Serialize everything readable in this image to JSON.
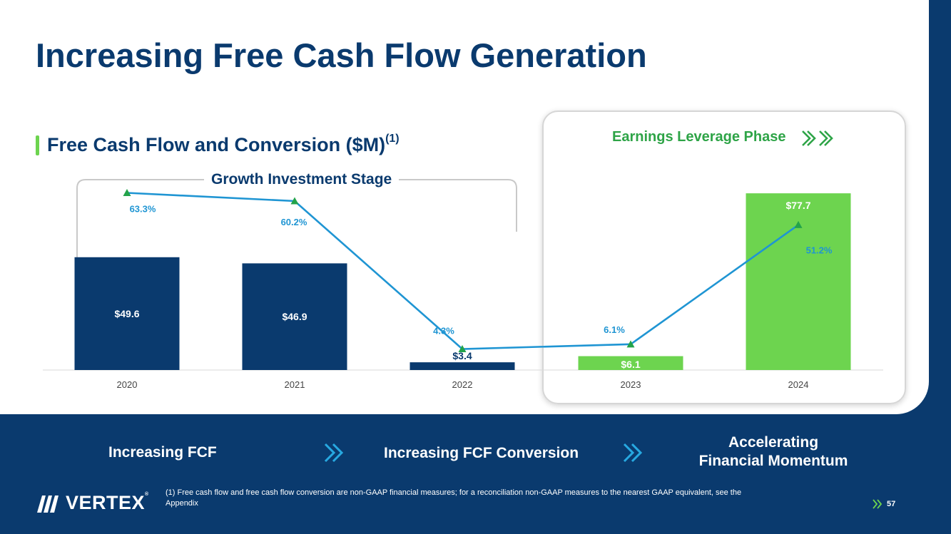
{
  "slide": {
    "title": "Increasing Free Cash Flow Generation",
    "subtitle_main": "Free Cash Flow and Conversion ($M)",
    "subtitle_sup": "(1)",
    "growth_stage_label": "Growth Investment Stage",
    "leverage_phase_label": "Earnings Leverage Phase",
    "page_number": "57",
    "footnote": "(1) Free cash flow and free cash flow conversion are non-GAAP financial measures; for a reconciliation non-GAAP measures to the nearest GAAP equivalent, see the Appendix",
    "logo_text": "VERTEX",
    "logo_reg": "®"
  },
  "bottom_bar": {
    "item1": "Increasing FCF",
    "item2": "Increasing FCF Conversion",
    "item3_line1": "Accelerating",
    "item3_line2": "Financial Momentum"
  },
  "colors": {
    "navy": "#0a3a6e",
    "green_bar": "#6dd44f",
    "green_text": "#2ea447",
    "line_blue": "#1f95d3",
    "marker_green": "#23a34a",
    "chevron_teal": "#27a9e1"
  },
  "chart_data": {
    "type": "bar+line",
    "title": "Free Cash Flow and Conversion ($M)",
    "categories": [
      "2020",
      "2021",
      "2022",
      "2023",
      "2024"
    ],
    "series": [
      {
        "name": "Free Cash Flow ($M)",
        "type": "bar",
        "values": [
          49.6,
          46.9,
          3.4,
          6.1,
          77.7
        ],
        "labels": [
          "$49.6",
          "$46.9",
          "$3.4",
          "$6.1",
          "$77.7"
        ],
        "colors": [
          "#0a3a6e",
          "#0a3a6e",
          "#0a3a6e",
          "#6dd44f",
          "#6dd44f"
        ]
      },
      {
        "name": "Free Cash Flow Conversion (%)",
        "type": "line",
        "values": [
          63.3,
          60.2,
          4.3,
          6.1,
          51.2
        ],
        "labels": [
          "63.3%",
          "60.2%",
          "4.3%",
          "6.1%",
          "51.2%"
        ]
      }
    ],
    "bar_ylim": [
      0,
      80
    ],
    "line_ylim": [
      0,
      70
    ],
    "grid": false,
    "legend": "none"
  }
}
